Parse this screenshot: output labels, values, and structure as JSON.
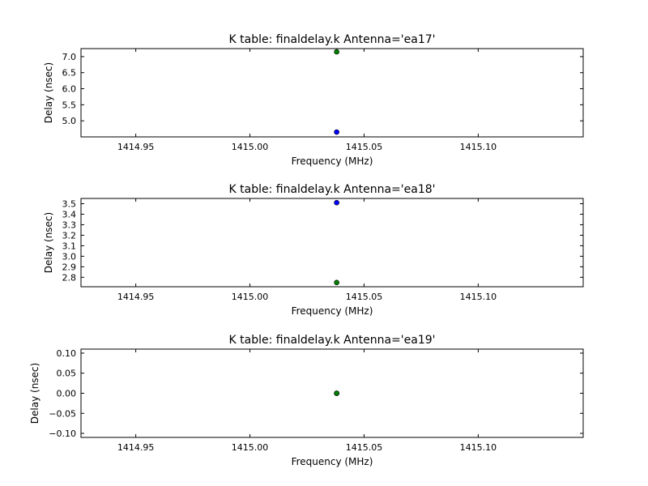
{
  "chart_data": [
    {
      "type": "scatter",
      "title": "K table: finaldelay.k      Antenna='ea17'",
      "xlabel": "Frequency (MHz)",
      "ylabel": "Delay (nsec)",
      "xlim": [
        1414.926,
        1415.146
      ],
      "ylim": [
        4.5,
        7.25
      ],
      "xticks": [
        "1414.95",
        "1415.00",
        "1415.05",
        "1415.10"
      ],
      "yticks": [
        "5.0",
        "5.5",
        "6.0",
        "6.5",
        "7.0"
      ],
      "series": [
        {
          "color": "#0000ff",
          "points": [
            {
              "x": 1415.038,
              "y": 4.65
            }
          ]
        },
        {
          "color": "#008000",
          "points": [
            {
              "x": 1415.038,
              "y": 7.15
            }
          ]
        }
      ],
      "grid": false
    },
    {
      "type": "scatter",
      "title": "K table: finaldelay.k      Antenna='ea18'",
      "xlabel": "Frequency (MHz)",
      "ylabel": "Delay (nsec)",
      "xlim": [
        1414.926,
        1415.146
      ],
      "ylim": [
        2.71,
        3.55
      ],
      "xticks": [
        "1414.95",
        "1415.00",
        "1415.05",
        "1415.10"
      ],
      "yticks": [
        "2.8",
        "2.9",
        "3.0",
        "3.1",
        "3.2",
        "3.3",
        "3.4",
        "3.5"
      ],
      "series": [
        {
          "color": "#0000ff",
          "points": [
            {
              "x": 1415.038,
              "y": 3.51
            }
          ]
        },
        {
          "color": "#008000",
          "points": [
            {
              "x": 1415.038,
              "y": 2.75
            }
          ]
        }
      ],
      "grid": false
    },
    {
      "type": "scatter",
      "title": "K table: finaldelay.k      Antenna='ea19'",
      "xlabel": "Frequency (MHz)",
      "ylabel": "Delay (nsec)",
      "xlim": [
        1414.926,
        1415.146
      ],
      "ylim": [
        -0.11,
        0.11
      ],
      "xticks": [
        "1414.95",
        "1415.00",
        "1415.05",
        "1415.10"
      ],
      "yticks": [
        "−0.10",
        "−0.05",
        "0.00",
        "0.05",
        "0.10"
      ],
      "series": [
        {
          "color": "#0000ff",
          "points": [
            {
              "x": 1415.038,
              "y": 0.0
            }
          ]
        },
        {
          "color": "#008000",
          "points": [
            {
              "x": 1415.038,
              "y": 0.0
            }
          ]
        }
      ],
      "grid": false
    }
  ]
}
